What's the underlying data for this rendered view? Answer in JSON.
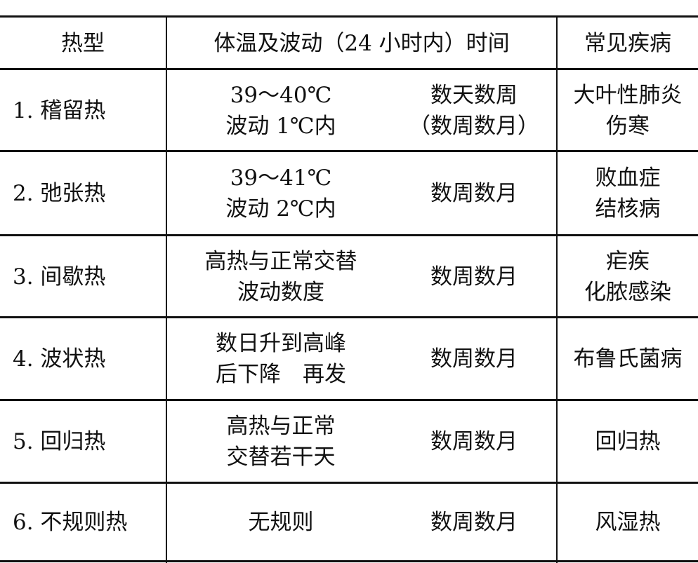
{
  "header": {
    "type": "热型",
    "temp": "体温及波动（24 小时内）时间",
    "disease": "常见疾病"
  },
  "rows": [
    {
      "type": "1.  稽留热",
      "temp": [
        "39～40℃",
        "波动 1℃内"
      ],
      "time": [
        "数天数周",
        "（数周数月）"
      ],
      "disease": [
        "大叶性肺炎",
        "伤寒"
      ]
    },
    {
      "type": "2.  弛张热",
      "temp": [
        "39～41℃",
        "波动 2℃内"
      ],
      "time": [
        "数周数月"
      ],
      "disease": [
        "败血症",
        "结核病"
      ]
    },
    {
      "type": "3.  间歇热",
      "temp": [
        "高热与正常交替",
        "波动数度"
      ],
      "time": [
        "数周数月"
      ],
      "disease": [
        "疟疾",
        "化脓感染"
      ]
    },
    {
      "type": "4.  波状热",
      "temp": [
        "数日升到高峰",
        "后下降　再发"
      ],
      "time": [
        "数周数月"
      ],
      "disease": [
        "布鲁氏菌病"
      ]
    },
    {
      "type": "5.  回归热",
      "temp": [
        "高热与正常",
        "交替若干天"
      ],
      "time": [
        "数周数月"
      ],
      "disease": [
        "回归热"
      ]
    },
    {
      "type": "6.  不规则热",
      "temp": [
        "无规则"
      ],
      "time": [
        "数周数月"
      ],
      "disease": [
        "风湿热"
      ]
    }
  ]
}
